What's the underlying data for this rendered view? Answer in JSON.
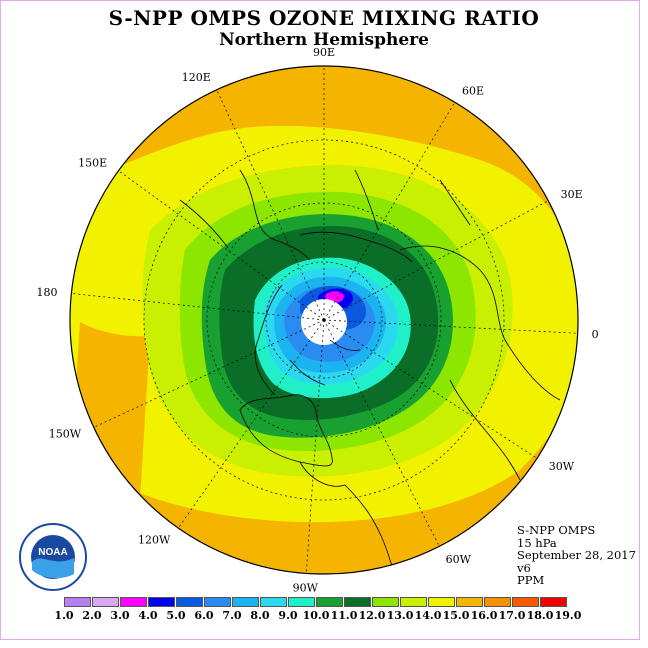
{
  "header": {
    "title": "S-NPP OMPS OZONE MIXING RATIO",
    "subtitle": "Northern Hemisphere"
  },
  "map": {
    "projection": "north-polar-stereographic",
    "longitude_labels": [
      "90E",
      "60E",
      "30E",
      "0",
      "30W",
      "60W",
      "90W",
      "120W",
      "150W",
      "180",
      "150E",
      "120E"
    ]
  },
  "info": {
    "instrument": "S-NPP OMPS",
    "level": "15 hPa",
    "date": "September 28, 2017",
    "version": "v6",
    "units": "PPM"
  },
  "logo": {
    "text": "NOAA",
    "icon": "noaa-logo-icon"
  },
  "colorbar": {
    "labels": [
      "1.0",
      "2.0",
      "3.0",
      "4.0",
      "5.0",
      "6.0",
      "7.0",
      "8.0",
      "9.0",
      "10.0",
      "11.0",
      "12.0",
      "13.0",
      "14.0",
      "15.0",
      "16.0",
      "17.0",
      "18.0",
      "19.0"
    ],
    "colors": [
      "#b57ff5",
      "#d9a8f0",
      "#ff00ff",
      "#0000f0",
      "#0a5ae0",
      "#2a8cf0",
      "#1cb4f0",
      "#2ad8f0",
      "#20f0c8",
      "#18a030",
      "#0a6e28",
      "#8ce600",
      "#c8f000",
      "#f2f200",
      "#f5b400",
      "#f59000",
      "#f55a00",
      "#f00000",
      "#8a5a40"
    ]
  }
}
